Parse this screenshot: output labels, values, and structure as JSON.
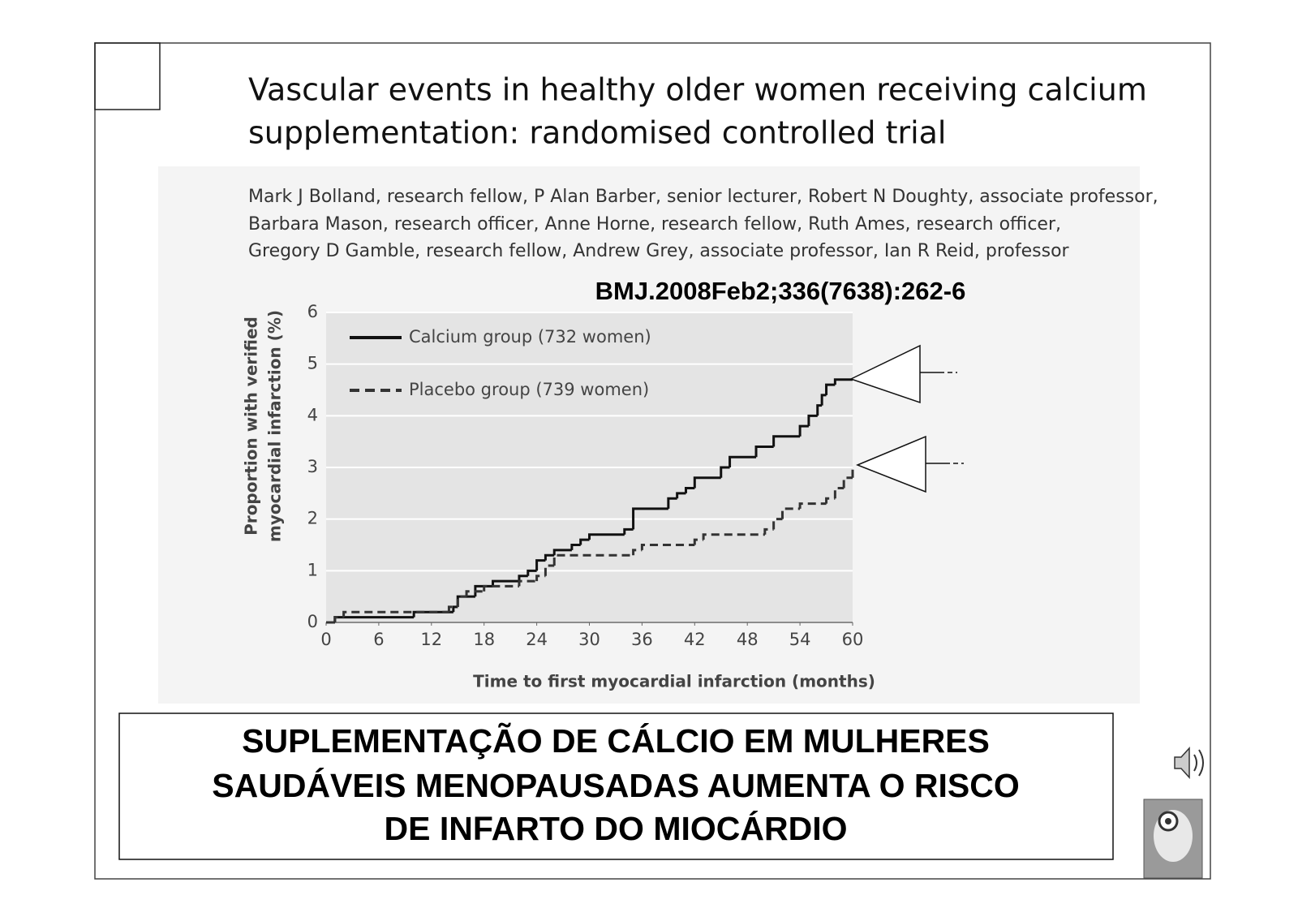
{
  "slide": {
    "title_lines": [
      "Vascular events in healthy older women receiving calcium",
      "supplementation: randomised controlled trial"
    ],
    "author_lines": [
      "Mark J Bolland, research fellow, P Alan Barber, senior lecturer, Robert N Doughty, associate professor,",
      "Barbara Mason, research officer, Anne Horne, research fellow, Ruth Ames, research officer,",
      "Gregory D Gamble, research fellow, Andrew Grey, associate professor, Ian R Reid, professor"
    ],
    "citation": "BMJ.2008Feb2;336(7638):262-6",
    "conclusion_lines": [
      "SUPLEMENTAÇÃO DE CÁLCIO EM MULHERES",
      "SAUDÁVEIS MENOPAUSADAS AUMENTA O RISCO",
      "DE INFARTO DO MIOCÁRDIO"
    ]
  },
  "chart_data": {
    "type": "step",
    "x_label": "Time to first myocardial infarction (months)",
    "y_label_lines": [
      "Proportion with verified",
      "myocardial infarction (%)"
    ],
    "xlim": [
      0,
      60
    ],
    "xticks": [
      0,
      6,
      12,
      18,
      24,
      30,
      36,
      42,
      48,
      54,
      60
    ],
    "ylim": [
      0,
      6
    ],
    "yticks": [
      0,
      1,
      2,
      3,
      4,
      5,
      6
    ],
    "grid": true,
    "legend": "upper left",
    "series": [
      {
        "name": "Calcium group (732 women)",
        "color": "#111111",
        "line_style": "solid",
        "x": [
          0,
          1,
          10,
          14.5,
          15,
          17,
          19,
          22,
          23,
          24,
          25,
          26,
          28,
          29,
          30,
          34,
          35,
          39,
          40,
          41,
          42,
          45,
          46,
          49,
          51,
          54,
          55,
          56,
          56.5,
          57,
          58,
          60
        ],
        "values": [
          0,
          0.1,
          0.2,
          0.3,
          0.5,
          0.7,
          0.8,
          0.9,
          1.0,
          1.2,
          1.3,
          1.4,
          1.5,
          1.6,
          1.7,
          1.8,
          2.2,
          2.4,
          2.5,
          2.6,
          2.8,
          3.0,
          3.2,
          3.4,
          3.6,
          3.8,
          4.0,
          4.2,
          4.4,
          4.6,
          4.7,
          4.7
        ]
      },
      {
        "name": "Placebo group (739 women)",
        "color": "#333333",
        "line_style": "dashed",
        "x": [
          0,
          1,
          2,
          14,
          15,
          16,
          18,
          22,
          24,
          25,
          26,
          35,
          36,
          42,
          43,
          50,
          51,
          52,
          54,
          57,
          58,
          59,
          60
        ],
        "values": [
          0,
          0.1,
          0.2,
          0.3,
          0.5,
          0.6,
          0.7,
          0.8,
          0.9,
          1.1,
          1.3,
          1.4,
          1.5,
          1.6,
          1.7,
          1.8,
          2.0,
          2.2,
          2.3,
          2.4,
          2.6,
          2.8,
          3.0
        ]
      }
    ]
  }
}
